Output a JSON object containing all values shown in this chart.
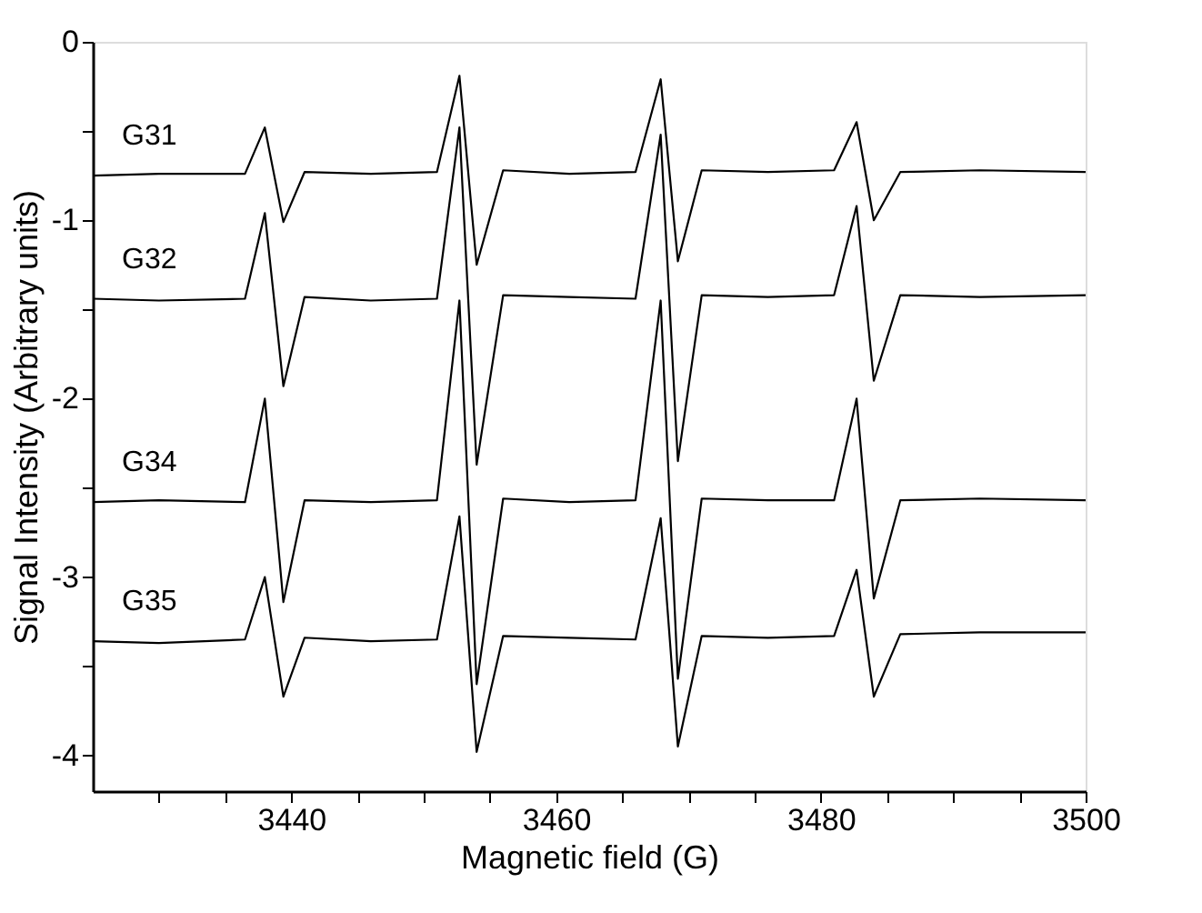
{
  "chart_data": {
    "type": "line",
    "xlabel": "Magnetic field (G)",
    "ylabel": "Signal Intensity (Arbitrary units)",
    "xlim": [
      3425,
      3500
    ],
    "ylim": [
      -4.2,
      0
    ],
    "xticks": [
      {
        "value": 3430,
        "label": null
      },
      {
        "value": 3435,
        "label": null
      },
      3440,
      {
        "value": 3445,
        "label": null
      },
      {
        "value": 3450,
        "label": null
      },
      {
        "value": 3455,
        "label": null
      },
      3460,
      {
        "value": 3465,
        "label": null
      },
      {
        "value": 3470,
        "label": null
      },
      {
        "value": 3475,
        "label": null
      },
      3480,
      {
        "value": 3485,
        "label": null
      },
      {
        "value": 3490,
        "label": null
      },
      {
        "value": 3495,
        "label": null
      },
      3500
    ],
    "yticks": [
      -4,
      {
        "value": -3.5,
        "label": null
      },
      -3,
      {
        "value": -2.5,
        "label": null
      },
      -2,
      {
        "value": -1.5,
        "label": null
      },
      -1,
      {
        "value": -0.5,
        "label": null
      },
      0
    ],
    "grid": false,
    "legend": false,
    "marker": "none",
    "line_style": "solid",
    "x": [
      3425,
      3430,
      3436.5,
      3438.0,
      3439.4,
      3441,
      3446,
      3451,
      3452.7,
      3454.0,
      3456,
      3461,
      3466,
      3467.9,
      3469.2,
      3471,
      3476,
      3481,
      3482.7,
      3484.0,
      3486,
      3492,
      3500
    ],
    "series": [
      {
        "name": "G31",
        "color": "#000000",
        "values": [
          -0.75,
          -0.74,
          -0.74,
          -0.48,
          -1.01,
          -0.73,
          -0.74,
          -0.73,
          -0.19,
          -1.25,
          -0.72,
          -0.74,
          -0.73,
          -0.21,
          -1.23,
          -0.72,
          -0.73,
          -0.72,
          -0.45,
          -1.0,
          -0.73,
          -0.72,
          -0.73
        ]
      },
      {
        "name": "G32",
        "color": "#000000",
        "values": [
          -1.44,
          -1.45,
          -1.44,
          -0.96,
          -1.93,
          -1.43,
          -1.45,
          -1.44,
          -0.48,
          -2.37,
          -1.42,
          -1.43,
          -1.44,
          -0.52,
          -2.35,
          -1.42,
          -1.43,
          -1.42,
          -0.92,
          -1.9,
          -1.42,
          -1.43,
          -1.42
        ]
      },
      {
        "name": "G34",
        "color": "#000000",
        "values": [
          -2.58,
          -2.57,
          -2.58,
          -2.0,
          -3.14,
          -2.57,
          -2.58,
          -2.57,
          -1.45,
          -3.6,
          -2.56,
          -2.58,
          -2.57,
          -1.45,
          -3.57,
          -2.56,
          -2.57,
          -2.57,
          -2.0,
          -3.12,
          -2.57,
          -2.56,
          -2.57
        ]
      },
      {
        "name": "G35",
        "color": "#000000",
        "values": [
          -3.36,
          -3.37,
          -3.35,
          -3.0,
          -3.67,
          -3.34,
          -3.36,
          -3.35,
          -2.66,
          -3.98,
          -3.33,
          -3.34,
          -3.35,
          -2.67,
          -3.95,
          -3.33,
          -3.34,
          -3.33,
          -2.96,
          -3.67,
          -3.32,
          -3.31,
          -3.31
        ]
      }
    ]
  }
}
